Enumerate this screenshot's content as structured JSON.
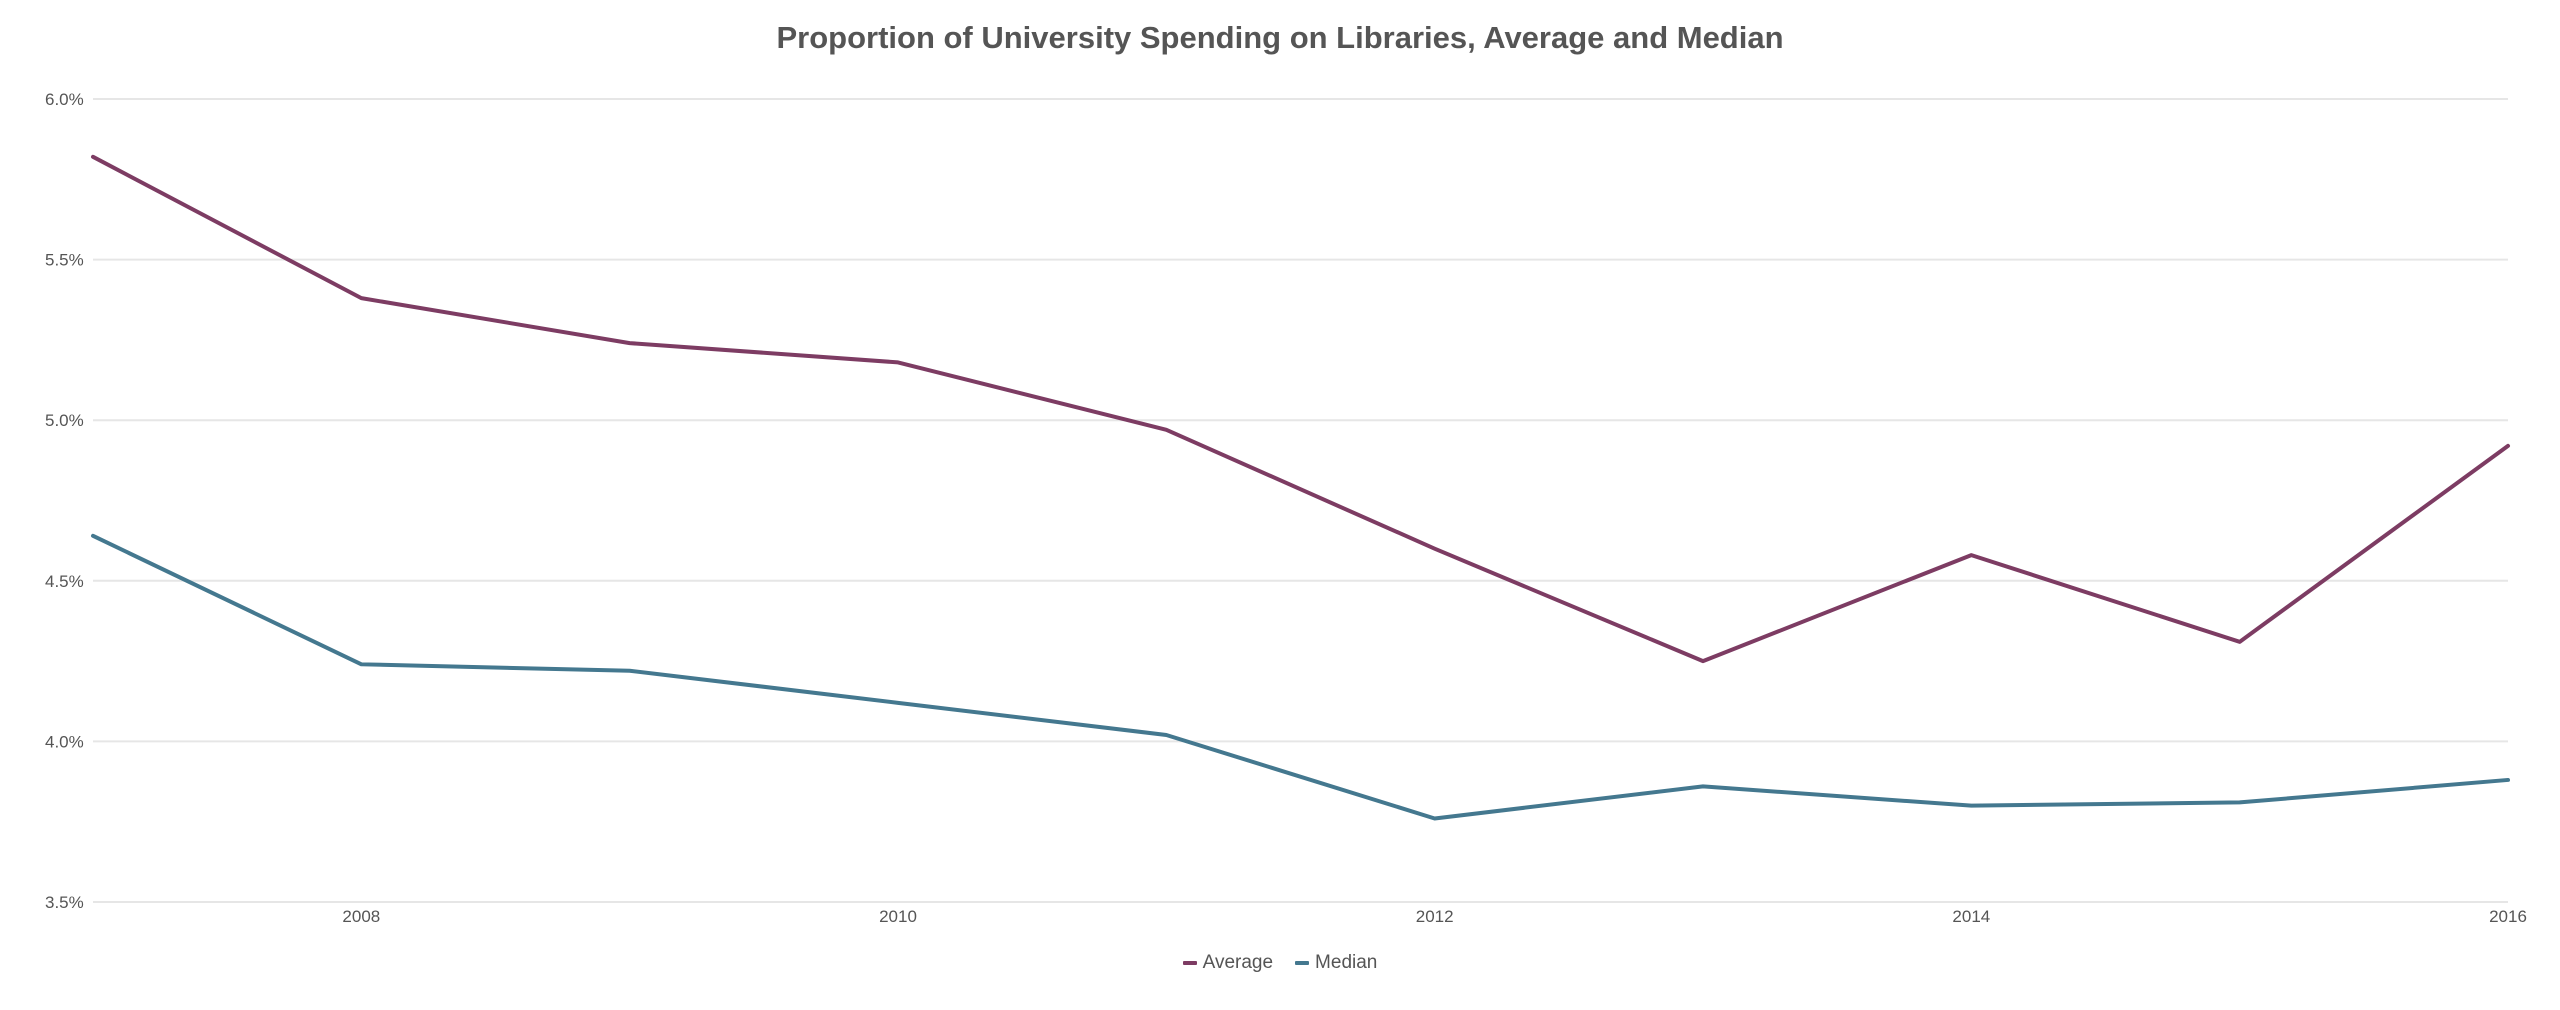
{
  "chart_data": {
    "type": "line",
    "title": "Proportion of University Spending on Libraries, Average and Median",
    "x": [
      2007,
      2008,
      2009,
      2010,
      2011,
      2012,
      2013,
      2014,
      2015,
      2016
    ],
    "x_ticks": [
      2008,
      2010,
      2012,
      2014,
      2016
    ],
    "xlim": [
      2007,
      2016
    ],
    "ylim": [
      3.5,
      6.0
    ],
    "y_ticks": [
      "3.5%",
      "4.0%",
      "4.5%",
      "5.0%",
      "5.5%",
      "6.0%"
    ],
    "y_tick_values": [
      3.5,
      4.0,
      4.5,
      5.0,
      5.5,
      6.0
    ],
    "grid": true,
    "legend_position": "bottom-center",
    "series": [
      {
        "name": "Average",
        "color": "#7d3c63",
        "values": [
          5.82,
          5.38,
          5.24,
          5.18,
          4.97,
          4.6,
          4.25,
          4.58,
          4.31,
          4.92
        ]
      },
      {
        "name": "Median",
        "color": "#44788f",
        "values": [
          4.64,
          4.24,
          4.22,
          4.12,
          4.02,
          3.76,
          3.86,
          3.8,
          3.81,
          3.88
        ]
      }
    ]
  }
}
